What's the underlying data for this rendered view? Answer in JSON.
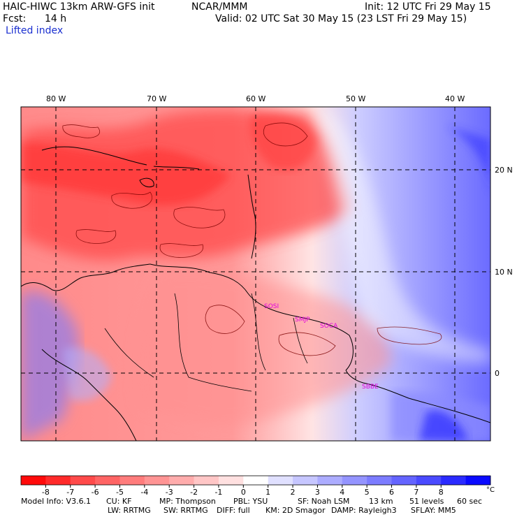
{
  "header": {
    "model": "HAIC-HIWC 13km ARW-GFS init",
    "org": "NCAR/MMM",
    "init": "Init: 12 UTC Fri 29 May 15",
    "fcst_label": "Fcst:",
    "fcst_value": "14 h",
    "valid": "Valid: 02 UTC Sat 30 May 15 (23 LST Fri 29 May 15)",
    "field": "Lifted index"
  },
  "map": {
    "lon_labels": [
      "80 W",
      "70 W",
      "60 W",
      "50 W",
      "40 W"
    ],
    "lat_labels": [
      "20 N",
      "10 N",
      "0"
    ],
    "stations": [
      "SOSI",
      "SMJP",
      "SOCA",
      "SBBE"
    ]
  },
  "colorbar": {
    "unit": "°C",
    "tick_labels": [
      "-8",
      "-7",
      "-6",
      "-5",
      "-4",
      "-3",
      "-2",
      "-1",
      "0",
      "1",
      "2",
      "3",
      "4",
      "5",
      "6",
      "7",
      "8"
    ],
    "colors": [
      "#ff0a0a",
      "#ff2a2a",
      "#ff4a4a",
      "#ff6464",
      "#ff7c7c",
      "#ff9494",
      "#ffacac",
      "#ffc6c6",
      "#ffe0e0",
      "#ffffff",
      "#e0e0ff",
      "#c6c6ff",
      "#acacff",
      "#9494ff",
      "#7c7cff",
      "#6464ff",
      "#4a4aff",
      "#2a2aff",
      "#0a0aff"
    ]
  },
  "footer": {
    "line1": [
      "Model Info: V3.6.1",
      "CU: KF",
      "MP: Thompson",
      "PBL: YSU",
      "SF: Noah LSM",
      "13 km",
      "51 levels",
      "60 sec"
    ],
    "line2": [
      "LW: RRTMG",
      "SW: RRTMG",
      "DIFF: full",
      "KM: 2D Smagor",
      "DAMP: Rayleigh3",
      "SFLAY: MM5"
    ]
  }
}
